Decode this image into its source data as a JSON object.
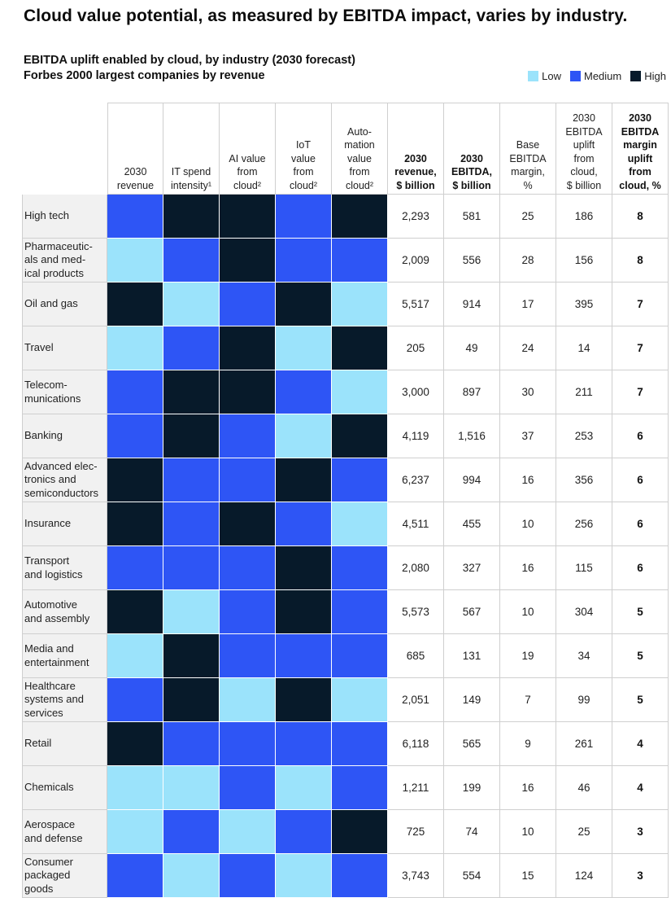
{
  "headline": "Cloud value potential, as measured by EBITDA impact, varies by industry.",
  "subtitle_line1": "EBITDA uplift enabled by cloud, by industry (2030 forecast)",
  "subtitle_line2": "Forbes 2000 largest companies by revenue",
  "legend": [
    {
      "label": "Low",
      "color": "#9be3fb"
    },
    {
      "label": "Medium",
      "color": "#2e55f5"
    },
    {
      "label": "High",
      "color": "#071a2a"
    }
  ],
  "colors": {
    "Low": "#9be3fb",
    "Medium": "#2e55f5",
    "High": "#071a2a"
  },
  "chart_data": {
    "type": "table",
    "columns": [
      "2030 revenue",
      "IT spend intensity¹",
      "AI value from cloud²",
      "IoT value from cloud²",
      "Automation value from cloud²",
      "2030 revenue, $ billion",
      "2030 EBITDA, $ billion",
      "Base EBITDA margin, %",
      "2030 EBITDA uplift from cloud, $ billion",
      "2030 EBITDA margin uplift from cloud, %"
    ],
    "column_headers": [
      {
        "text": "2030\nrevenue",
        "bold": false
      },
      {
        "text": "IT spend\nintensity¹",
        "bold": false
      },
      {
        "text": "AI value\nfrom\ncloud²",
        "bold": false
      },
      {
        "text": "IoT\nvalue\nfrom\ncloud²",
        "bold": false
      },
      {
        "text": "Auto-\nmation\nvalue\nfrom\ncloud²",
        "bold": false
      },
      {
        "text": "2030\nrevenue,\n$ billion",
        "bold": true
      },
      {
        "text": "2030\nEBITDA,\n$ billion",
        "bold": true
      },
      {
        "text": "Base\nEBITDA\nmargin,\n%",
        "bold": false
      },
      {
        "text": "2030\nEBITDA\nuplift\nfrom\ncloud,\n$ billion",
        "bold": false
      },
      {
        "text": "2030\nEBITDA\nmargin\nuplift\nfrom\ncloud, %",
        "bold": true
      }
    ],
    "rows": [
      {
        "industry": "High tech",
        "ratings": [
          "Medium",
          "High",
          "High",
          "Medium",
          "High"
        ],
        "revenue": "2,293",
        "ebitda": "581",
        "base_margin": "25",
        "uplift": "186",
        "margin_uplift": "8"
      },
      {
        "industry": "Pharmaceutic-\nals and med-\nical products",
        "ratings": [
          "Low",
          "Medium",
          "High",
          "Medium",
          "Medium"
        ],
        "revenue": "2,009",
        "ebitda": "556",
        "base_margin": "28",
        "uplift": "156",
        "margin_uplift": "8"
      },
      {
        "industry": "Oil and gas",
        "ratings": [
          "High",
          "Low",
          "Medium",
          "High",
          "Low"
        ],
        "revenue": "5,517",
        "ebitda": "914",
        "base_margin": "17",
        "uplift": "395",
        "margin_uplift": "7"
      },
      {
        "industry": "Travel",
        "ratings": [
          "Low",
          "Medium",
          "High",
          "Low",
          "High"
        ],
        "revenue": "205",
        "ebitda": "49",
        "base_margin": "24",
        "uplift": "14",
        "margin_uplift": "7"
      },
      {
        "industry": "Telecom-\nmunications",
        "ratings": [
          "Medium",
          "High",
          "High",
          "Medium",
          "Low"
        ],
        "revenue": "3,000",
        "ebitda": "897",
        "base_margin": "30",
        "uplift": "211",
        "margin_uplift": "7"
      },
      {
        "industry": "Banking",
        "ratings": [
          "Medium",
          "High",
          "Medium",
          "Low",
          "High"
        ],
        "revenue": "4,119",
        "ebitda": "1,516",
        "base_margin": "37",
        "uplift": "253",
        "margin_uplift": "6"
      },
      {
        "industry": "Advanced elec-\ntronics and\nsemiconductors",
        "ratings": [
          "High",
          "Medium",
          "Medium",
          "High",
          "Medium"
        ],
        "revenue": "6,237",
        "ebitda": "994",
        "base_margin": "16",
        "uplift": "356",
        "margin_uplift": "6"
      },
      {
        "industry": "Insurance",
        "ratings": [
          "High",
          "Medium",
          "High",
          "Medium",
          "Low"
        ],
        "revenue": "4,511",
        "ebitda": "455",
        "base_margin": "10",
        "uplift": "256",
        "margin_uplift": "6"
      },
      {
        "industry": "Transport\nand logistics",
        "ratings": [
          "Medium",
          "Medium",
          "Medium",
          "High",
          "Medium"
        ],
        "revenue": "2,080",
        "ebitda": "327",
        "base_margin": "16",
        "uplift": "115",
        "margin_uplift": "6"
      },
      {
        "industry": "Automotive\nand assembly",
        "ratings": [
          "High",
          "Low",
          "Medium",
          "High",
          "Medium"
        ],
        "revenue": "5,573",
        "ebitda": "567",
        "base_margin": "10",
        "uplift": "304",
        "margin_uplift": "5"
      },
      {
        "industry": "Media and\nentertainment",
        "ratings": [
          "Low",
          "High",
          "Medium",
          "Medium",
          "Medium"
        ],
        "revenue": "685",
        "ebitda": "131",
        "base_margin": "19",
        "uplift": "34",
        "margin_uplift": "5"
      },
      {
        "industry": "Healthcare\nsystems and\nservices",
        "ratings": [
          "Medium",
          "High",
          "Low",
          "High",
          "Low"
        ],
        "revenue": "2,051",
        "ebitda": "149",
        "base_margin": "7",
        "uplift": "99",
        "margin_uplift": "5"
      },
      {
        "industry": "Retail",
        "ratings": [
          "High",
          "Medium",
          "Medium",
          "Medium",
          "Medium"
        ],
        "revenue": "6,118",
        "ebitda": "565",
        "base_margin": "9",
        "uplift": "261",
        "margin_uplift": "4"
      },
      {
        "industry": "Chemicals",
        "ratings": [
          "Low",
          "Low",
          "Medium",
          "Low",
          "Medium"
        ],
        "revenue": "1,211",
        "ebitda": "199",
        "base_margin": "16",
        "uplift": "46",
        "margin_uplift": "4"
      },
      {
        "industry": "Aerospace\nand defense",
        "ratings": [
          "Low",
          "Medium",
          "Low",
          "Medium",
          "High"
        ],
        "revenue": "725",
        "ebitda": "74",
        "base_margin": "10",
        "uplift": "25",
        "margin_uplift": "3"
      },
      {
        "industry": "Consumer\npackaged\ngoods",
        "ratings": [
          "Medium",
          "Low",
          "Medium",
          "Low",
          "Medium"
        ],
        "revenue": "3,743",
        "ebitda": "554",
        "base_margin": "15",
        "uplift": "124",
        "margin_uplift": "3"
      }
    ]
  }
}
